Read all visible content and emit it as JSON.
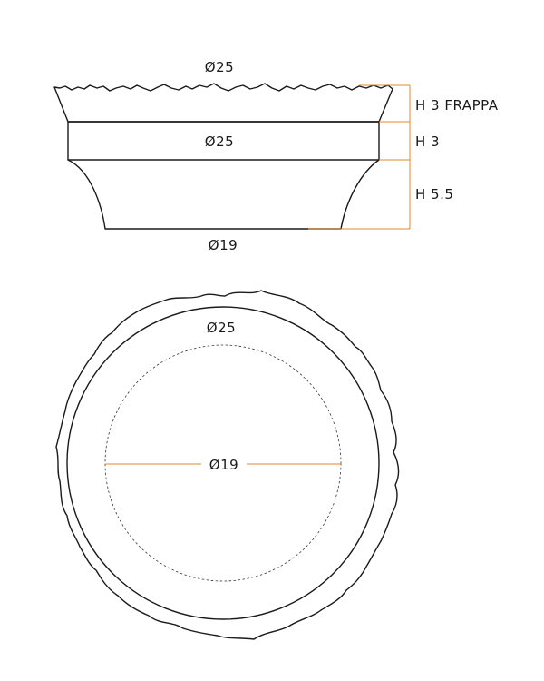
{
  "side_view": {
    "top_diameter": "Ø25",
    "middle_diameter": "Ø25",
    "bottom_diameter": "Ø19",
    "heights": [
      "H 3 FRAPPA",
      "H 3",
      "H 5.5"
    ]
  },
  "top_view": {
    "outer_diameter": "Ø25",
    "inner_diameter": "Ø19"
  },
  "colors": {
    "outline": "#1a1a1a",
    "dimension_line": "#e08a2c",
    "dashed_circle": "#333333"
  }
}
